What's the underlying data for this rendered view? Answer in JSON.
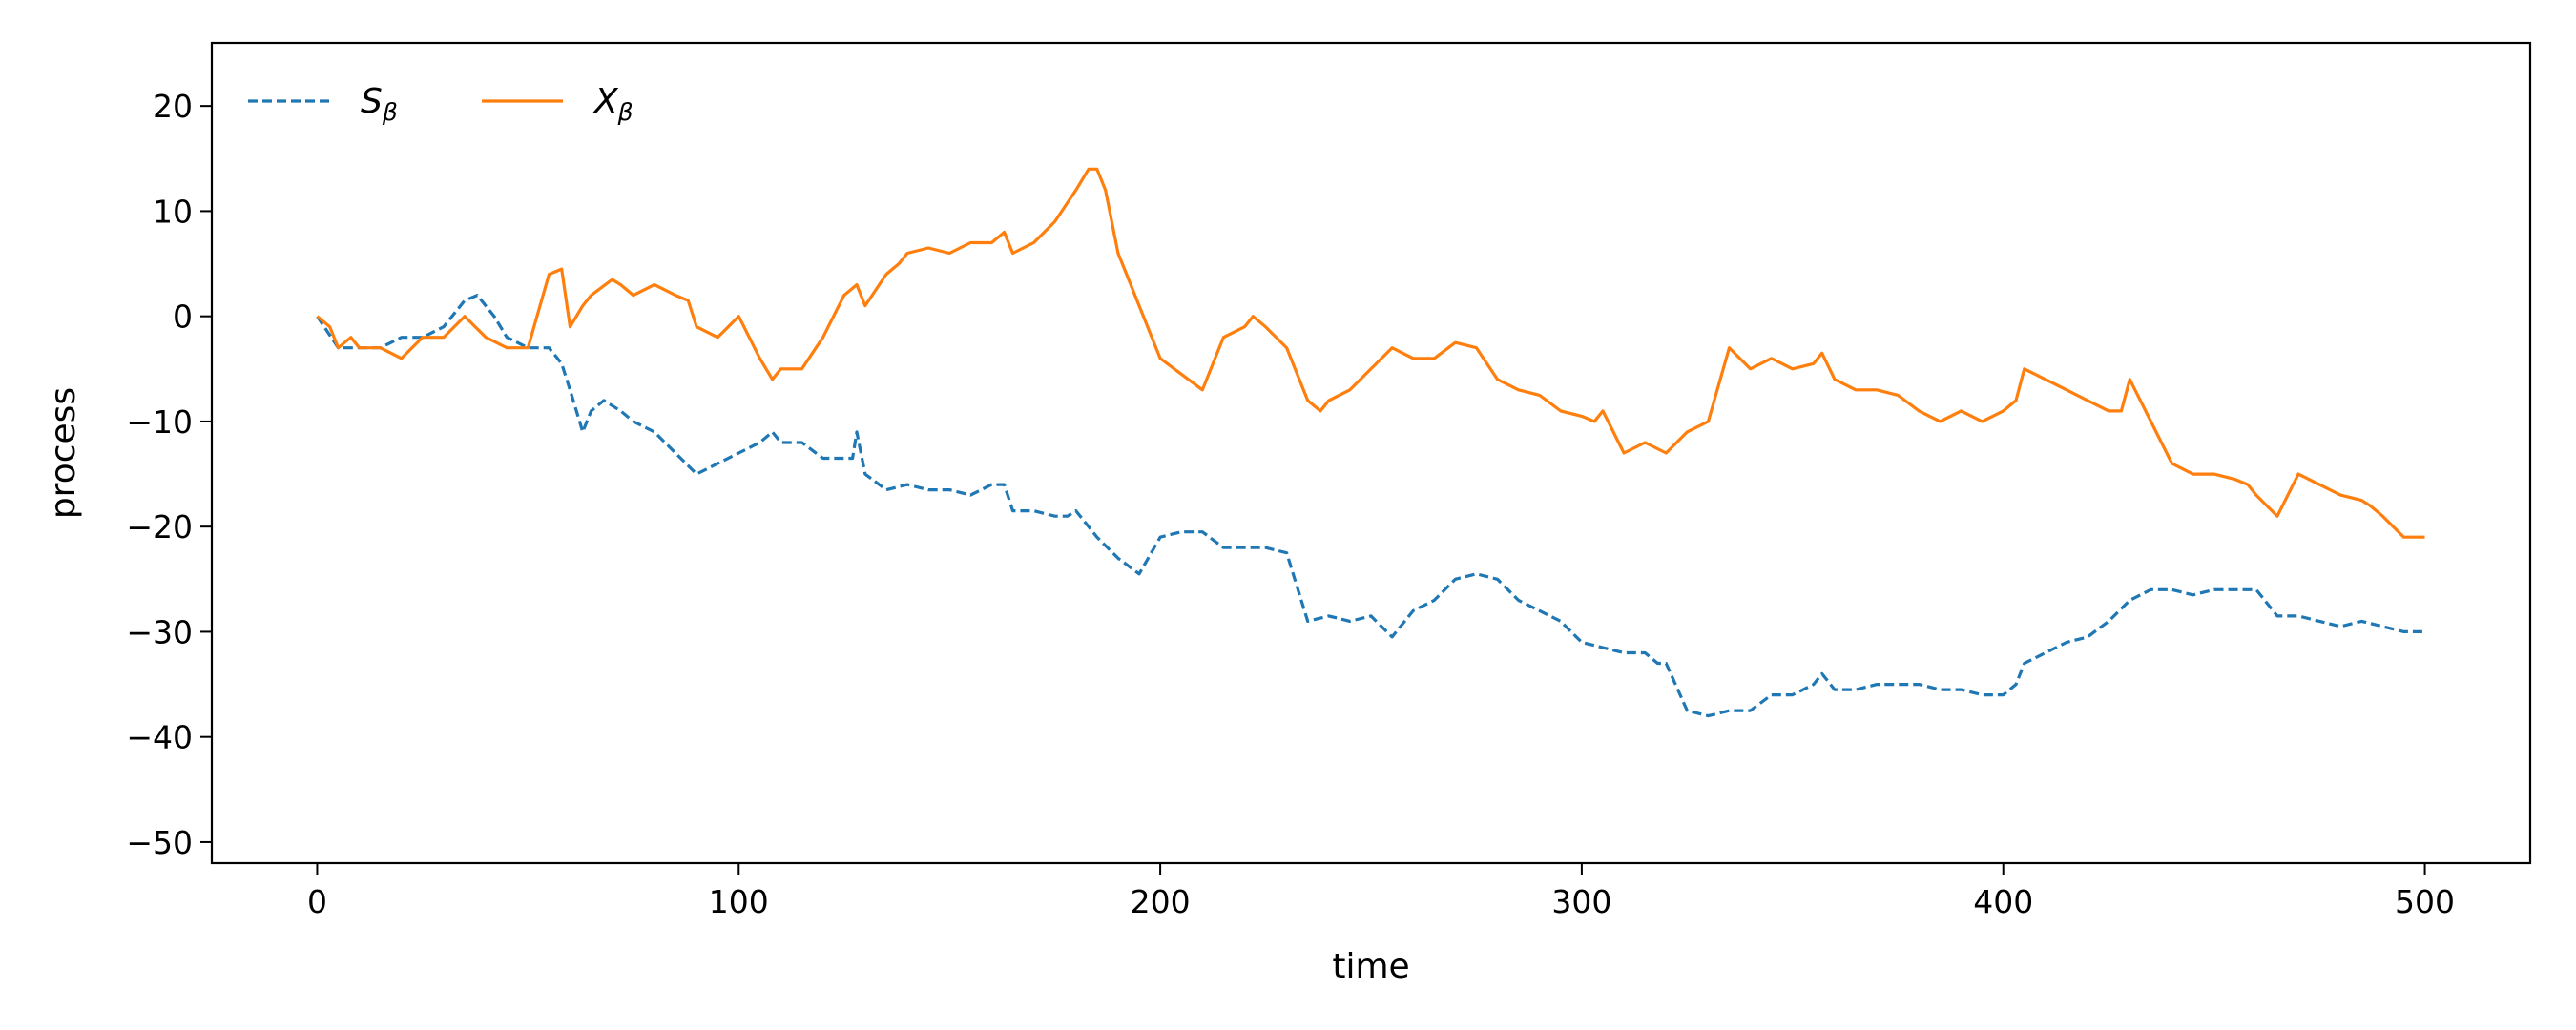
{
  "chart_data": {
    "type": "line",
    "xlabel": "time",
    "ylabel": "process",
    "xlim": [
      -25,
      525
    ],
    "ylim": [
      -52,
      26
    ],
    "xticks": [
      0,
      100,
      200,
      300,
      400,
      500
    ],
    "yticks": [
      20,
      10,
      0,
      -10,
      -20,
      -30,
      -40,
      -50
    ],
    "xtick_labels": [
      "0",
      "100",
      "200",
      "300",
      "400",
      "500"
    ],
    "ytick_labels": [
      "20",
      "10",
      "0",
      "−10",
      "−20",
      "−30",
      "−40",
      "−50"
    ],
    "grid": false,
    "legend_position": "top-left",
    "series": [
      {
        "name": "S",
        "name_subscript": "β",
        "color": "#1f77b4",
        "style": "dashed",
        "x": [
          0,
          5,
          10,
          15,
          20,
          25,
          30,
          35,
          38,
          42,
          45,
          50,
          55,
          58,
          60,
          63,
          65,
          68,
          72,
          75,
          80,
          85,
          90,
          95,
          100,
          105,
          108,
          110,
          115,
          120,
          125,
          127,
          128,
          130,
          135,
          140,
          145,
          150,
          155,
          160,
          163,
          165,
          170,
          175,
          178,
          180,
          185,
          190,
          195,
          200,
          205,
          210,
          215,
          220,
          225,
          230,
          235,
          240,
          245,
          250,
          255,
          260,
          265,
          270,
          275,
          280,
          285,
          290,
          295,
          300,
          305,
          310,
          315,
          318,
          320,
          325,
          330,
          335,
          340,
          345,
          350,
          355,
          357,
          360,
          365,
          370,
          375,
          380,
          385,
          390,
          395,
          400,
          403,
          405,
          410,
          415,
          420,
          425,
          430,
          435,
          440,
          445,
          450,
          455,
          460,
          465,
          470,
          475,
          480,
          485,
          490,
          495,
          500
        ],
        "values": [
          0,
          -3,
          -3,
          -3,
          -2,
          -2,
          -1,
          1.5,
          2,
          0,
          -2,
          -3,
          -3,
          -4.5,
          -7,
          -11,
          -9,
          -8,
          -9,
          -10,
          -11,
          -13,
          -15,
          -14,
          -13,
          -12,
          -11,
          -12,
          -12,
          -13.5,
          -13.5,
          -13.5,
          -11,
          -15,
          -16.5,
          -16,
          -16.5,
          -16.5,
          -17,
          -16,
          -16,
          -18.5,
          -18.5,
          -19,
          -19,
          -18.5,
          -21,
          -23,
          -24.5,
          -21,
          -20.5,
          -20.5,
          -22,
          -22,
          -22,
          -22.5,
          -29,
          -28.5,
          -29,
          -28.5,
          -30.5,
          -28,
          -27,
          -25,
          -24.5,
          -25,
          -27,
          -28,
          -29,
          -31,
          -31.5,
          -32,
          -32,
          -33,
          -33,
          -37.5,
          -38,
          -37.5,
          -37.5,
          -36,
          -36,
          -35,
          -34,
          -35.5,
          -35.5,
          -35,
          -35,
          -35,
          -35.5,
          -35.5,
          -36,
          -36,
          -35,
          -33,
          -32,
          -31,
          -30.5,
          -29,
          -27,
          -26,
          -26,
          -26.5,
          -26,
          -26,
          -26,
          -28.5,
          -28.5,
          -29,
          -29.5,
          -29,
          -29.5,
          -30,
          -30
        ]
      },
      {
        "name": "X",
        "name_subscript": "β",
        "color": "#ff7f0e",
        "style": "solid",
        "x": [
          0,
          3,
          5,
          8,
          10,
          15,
          20,
          25,
          30,
          35,
          40,
          45,
          50,
          55,
          58,
          60,
          63,
          65,
          70,
          72,
          75,
          80,
          85,
          88,
          90,
          95,
          100,
          105,
          108,
          110,
          115,
          120,
          125,
          128,
          130,
          135,
          138,
          140,
          145,
          150,
          155,
          160,
          163,
          165,
          170,
          175,
          180,
          183,
          185,
          187,
          190,
          193,
          195,
          200,
          205,
          210,
          215,
          220,
          222,
          225,
          230,
          235,
          238,
          240,
          245,
          250,
          255,
          260,
          265,
          270,
          275,
          280,
          285,
          290,
          295,
          300,
          303,
          305,
          310,
          315,
          320,
          325,
          330,
          335,
          340,
          345,
          350,
          355,
          357,
          360,
          365,
          370,
          375,
          380,
          385,
          390,
          395,
          400,
          403,
          405,
          410,
          415,
          420,
          425,
          428,
          430,
          435,
          440,
          445,
          450,
          455,
          458,
          460,
          465,
          470,
          475,
          480,
          485,
          487,
          490,
          495,
          500
        ],
        "values": [
          0,
          -1,
          -3,
          -2,
          -3,
          -3,
          -4,
          -2,
          -2,
          0,
          -2,
          -3,
          -3,
          4,
          4.5,
          -1,
          1,
          2,
          3.5,
          3,
          2,
          3,
          2,
          1.5,
          -1,
          -2,
          0,
          -4,
          -6,
          -5,
          -5,
          -2,
          2,
          3,
          1,
          4,
          5,
          6,
          6.5,
          6,
          7,
          7,
          8,
          6,
          7,
          9,
          12,
          14,
          14,
          12,
          6,
          3,
          1,
          -4,
          -5.5,
          -7,
          -2,
          -1,
          0,
          -1,
          -3,
          -8,
          -9,
          -8,
          -7,
          -5,
          -3,
          -4,
          -4,
          -2.5,
          -3,
          -6,
          -7,
          -7.5,
          -9,
          -9.5,
          -10,
          -9,
          -13,
          -12,
          -13,
          -11,
          -10,
          -3,
          -5,
          -4,
          -5,
          -4.5,
          -3.5,
          -6,
          -7,
          -7,
          -7.5,
          -9,
          -10,
          -9,
          -10,
          -9,
          -8,
          -5,
          -6,
          -7,
          -8,
          -9,
          -9,
          -6,
          -10,
          -14,
          -15,
          -15,
          -15.5,
          -16,
          -17,
          -19,
          -15,
          -16,
          -17,
          -17.5,
          -18,
          -19,
          -21,
          -21
        ]
      }
    ]
  }
}
